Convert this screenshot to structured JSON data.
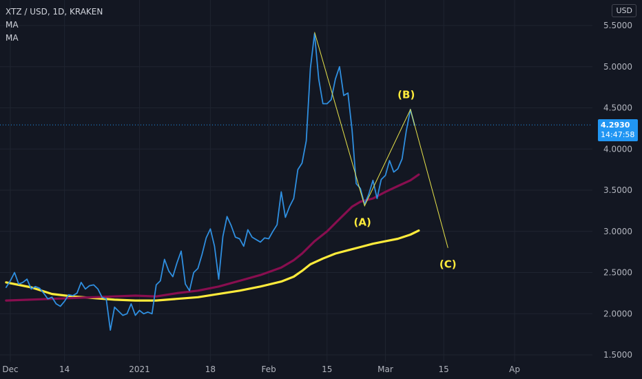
{
  "header": {
    "symbol": "XTZ / USD, 1D, KRAKEN",
    "indicators": [
      "MA",
      "MA"
    ],
    "currency": "USD"
  },
  "price_tag": {
    "price": "4.2930",
    "countdown": "14:47:58"
  },
  "colors": {
    "background": "#131722",
    "grid": "#1f2430",
    "price_line": "#2f8fe0",
    "ma_fast": "#880e4f",
    "ma_slow": "#ffeb3b",
    "wave_line": "#e9e44b",
    "wave_label": "#ffeb3b",
    "price_tag": "#2196f3",
    "axis_text": "#b2b5be"
  },
  "chart_data": {
    "type": "line",
    "y_axis": {
      "ylim": [
        1.45,
        5.72
      ],
      "ticks": [
        "1.5000",
        "2.0000",
        "2.5000",
        "3.0000",
        "3.5000",
        "4.0000",
        "4.5000",
        "5.0000",
        "5.5000"
      ],
      "position": "right"
    },
    "x_axis": {
      "ticks": [
        {
          "label": "Dec",
          "day": 0
        },
        {
          "label": "14",
          "day": 13
        },
        {
          "label": "2021",
          "day": 31
        },
        {
          "label": "18",
          "day": 48
        },
        {
          "label": "Feb",
          "day": 62
        },
        {
          "label": "15",
          "day": 76
        },
        {
          "label": "Mar",
          "day": 90
        },
        {
          "label": "15",
          "day": 104
        },
        {
          "label": "Ap",
          "day": 121
        }
      ]
    },
    "current_price": 4.293,
    "series": [
      {
        "kind": "price",
        "points": [
          [
            -1,
            2.32
          ],
          [
            0,
            2.4
          ],
          [
            1,
            2.5
          ],
          [
            2,
            2.36
          ],
          [
            3,
            2.38
          ],
          [
            4,
            2.42
          ],
          [
            5,
            2.3
          ],
          [
            6,
            2.33
          ],
          [
            7,
            2.31
          ],
          [
            8,
            2.25
          ],
          [
            9,
            2.18
          ],
          [
            10,
            2.2
          ],
          [
            11,
            2.12
          ],
          [
            12,
            2.09
          ],
          [
            13,
            2.15
          ],
          [
            14,
            2.23
          ],
          [
            15,
            2.22
          ],
          [
            16,
            2.25
          ],
          [
            17,
            2.38
          ],
          [
            18,
            2.3
          ],
          [
            19,
            2.34
          ],
          [
            20,
            2.35
          ],
          [
            21,
            2.3
          ],
          [
            22,
            2.2
          ],
          [
            23,
            2.18
          ],
          [
            24,
            1.8
          ],
          [
            25,
            2.08
          ],
          [
            26,
            2.03
          ],
          [
            27,
            1.98
          ],
          [
            28,
            2.0
          ],
          [
            29,
            2.12
          ],
          [
            30,
            1.98
          ],
          [
            31,
            2.04
          ],
          [
            32,
            2.0
          ],
          [
            33,
            2.02
          ],
          [
            34,
            2.0
          ],
          [
            35,
            2.35
          ],
          [
            36,
            2.4
          ],
          [
            37,
            2.66
          ],
          [
            38,
            2.52
          ],
          [
            39,
            2.45
          ],
          [
            40,
            2.62
          ],
          [
            41,
            2.76
          ],
          [
            42,
            2.36
          ],
          [
            43,
            2.28
          ],
          [
            44,
            2.5
          ],
          [
            45,
            2.55
          ],
          [
            46,
            2.72
          ],
          [
            47,
            2.92
          ],
          [
            48,
            3.03
          ],
          [
            49,
            2.82
          ],
          [
            50,
            2.42
          ],
          [
            51,
            2.94
          ],
          [
            52,
            3.18
          ],
          [
            53,
            3.07
          ],
          [
            54,
            2.93
          ],
          [
            55,
            2.91
          ],
          [
            56,
            2.82
          ],
          [
            57,
            3.02
          ],
          [
            58,
            2.93
          ],
          [
            59,
            2.9
          ],
          [
            60,
            2.87
          ],
          [
            61,
            2.92
          ],
          [
            62,
            2.91
          ],
          [
            63,
            3.0
          ],
          [
            64,
            3.08
          ],
          [
            65,
            3.48
          ],
          [
            66,
            3.17
          ],
          [
            67,
            3.3
          ],
          [
            68,
            3.4
          ],
          [
            69,
            3.75
          ],
          [
            70,
            3.83
          ],
          [
            71,
            4.1
          ],
          [
            72,
            4.98
          ],
          [
            73,
            5.4
          ],
          [
            74,
            4.85
          ],
          [
            75,
            4.55
          ],
          [
            76,
            4.55
          ],
          [
            77,
            4.6
          ],
          [
            78,
            4.85
          ],
          [
            79,
            5.0
          ],
          [
            80,
            4.65
          ],
          [
            81,
            4.68
          ],
          [
            82,
            4.23
          ],
          [
            83,
            3.58
          ],
          [
            84,
            3.52
          ],
          [
            85,
            3.33
          ],
          [
            86,
            3.45
          ],
          [
            87,
            3.62
          ],
          [
            88,
            3.4
          ],
          [
            89,
            3.63
          ],
          [
            90,
            3.68
          ],
          [
            91,
            3.86
          ],
          [
            92,
            3.72
          ],
          [
            93,
            3.76
          ],
          [
            94,
            3.88
          ],
          [
            95,
            4.22
          ],
          [
            96,
            4.48
          ],
          [
            97,
            4.29
          ]
        ]
      },
      {
        "kind": "ma_fast",
        "points": [
          [
            -1,
            2.16
          ],
          [
            10,
            2.18
          ],
          [
            20,
            2.2
          ],
          [
            30,
            2.22
          ],
          [
            35,
            2.21
          ],
          [
            40,
            2.25
          ],
          [
            45,
            2.28
          ],
          [
            50,
            2.33
          ],
          [
            55,
            2.4
          ],
          [
            60,
            2.47
          ],
          [
            65,
            2.56
          ],
          [
            68,
            2.65
          ],
          [
            70,
            2.73
          ],
          [
            73,
            2.88
          ],
          [
            76,
            3.0
          ],
          [
            79,
            3.15
          ],
          [
            82,
            3.3
          ],
          [
            84,
            3.36
          ],
          [
            87,
            3.4
          ],
          [
            90,
            3.48
          ],
          [
            93,
            3.55
          ],
          [
            96,
            3.62
          ],
          [
            98,
            3.69
          ]
        ]
      },
      {
        "kind": "ma_slow",
        "points": [
          [
            -1,
            2.38
          ],
          [
            5,
            2.32
          ],
          [
            10,
            2.24
          ],
          [
            15,
            2.21
          ],
          [
            20,
            2.19
          ],
          [
            25,
            2.17
          ],
          [
            30,
            2.16
          ],
          [
            35,
            2.16
          ],
          [
            40,
            2.18
          ],
          [
            45,
            2.2
          ],
          [
            50,
            2.24
          ],
          [
            55,
            2.28
          ],
          [
            60,
            2.33
          ],
          [
            65,
            2.39
          ],
          [
            68,
            2.45
          ],
          [
            70,
            2.52
          ],
          [
            72,
            2.6
          ],
          [
            75,
            2.67
          ],
          [
            78,
            2.73
          ],
          [
            81,
            2.77
          ],
          [
            84,
            2.81
          ],
          [
            87,
            2.85
          ],
          [
            90,
            2.88
          ],
          [
            93,
            2.91
          ],
          [
            96,
            2.96
          ],
          [
            98,
            3.01
          ]
        ]
      }
    ],
    "wave_path": [
      [
        73,
        5.42
      ],
      [
        85,
        3.31
      ],
      [
        96,
        4.48
      ],
      [
        105,
        2.8
      ]
    ],
    "wave_labels": [
      {
        "text": "(A)",
        "day": 84.5,
        "value": 3.11
      },
      {
        "text": "(B)",
        "day": 95,
        "value": 4.66
      },
      {
        "text": "(C)",
        "day": 105,
        "value": 2.6
      }
    ]
  }
}
